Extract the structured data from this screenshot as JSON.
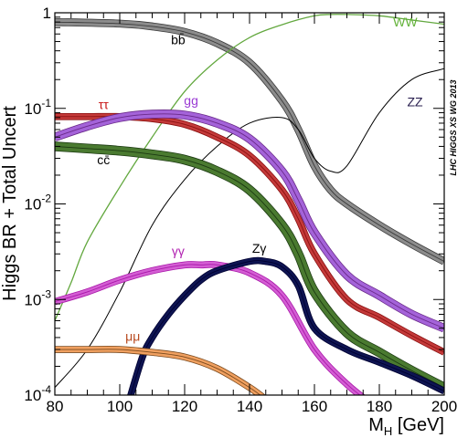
{
  "chart_data": {
    "type": "line",
    "title": "",
    "xlabel_main": "M",
    "xlabel_sub": "H",
    "xlabel_unit": " [GeV]",
    "ylabel": "Higgs BR + Total Uncert",
    "xlim": [
      80,
      200
    ],
    "ylim": [
      0.0001,
      1
    ],
    "yscale": "log",
    "x_ticks": [
      80,
      100,
      120,
      140,
      160,
      180,
      200
    ],
    "x_tick_labels": [
      "80",
      "100",
      "120",
      "140",
      "160",
      "180",
      "200"
    ],
    "y_ticks": [
      1,
      0.1,
      0.01,
      0.001,
      0.0001
    ],
    "y_tick_labels": [
      {
        "base": "1",
        "exp": ""
      },
      {
        "base": "10",
        "exp": "-1"
      },
      {
        "base": "10",
        "exp": "-2"
      },
      {
        "base": "10",
        "exp": "-3"
      },
      {
        "base": "10",
        "exp": "-4"
      }
    ],
    "grid": false,
    "watermark": "LHC HIGGS XS WG 2013",
    "series": [
      {
        "name": "bb̄",
        "color": "#3a3a3a",
        "band": "#8c8c8c",
        "band_width": 7,
        "x": [
          80,
          100,
          110,
          120,
          130,
          140,
          150,
          155,
          160,
          165,
          170,
          180,
          190,
          200
        ],
        "values": [
          0.8,
          0.77,
          0.72,
          0.63,
          0.48,
          0.3,
          0.12,
          0.06,
          0.025,
          0.014,
          0.01,
          0.006,
          0.0038,
          0.0025
        ]
      },
      {
        "name": "WW",
        "color": "#63a83f",
        "band": "#9ad07a",
        "band_width": 1.3,
        "x": [
          80,
          85,
          90,
          100,
          110,
          120,
          130,
          140,
          150,
          160,
          165,
          170,
          180,
          190,
          200
        ],
        "values": [
          0.0006,
          0.0015,
          0.004,
          0.015,
          0.05,
          0.15,
          0.32,
          0.55,
          0.75,
          0.93,
          0.96,
          0.96,
          0.93,
          0.84,
          0.76
        ]
      },
      {
        "name": "ZZ",
        "color": "#000000",
        "band": "#b8b8b8",
        "band_width": 1,
        "x": [
          80,
          90,
          100,
          110,
          120,
          130,
          140,
          150,
          155,
          160,
          165,
          170,
          180,
          190,
          200
        ],
        "values": [
          0.00012,
          0.0003,
          0.0012,
          0.006,
          0.018,
          0.04,
          0.07,
          0.08,
          0.06,
          0.03,
          0.022,
          0.025,
          0.09,
          0.2,
          0.26
        ]
      },
      {
        "name": "ττ",
        "color": "#8b1010",
        "band": "#c43a3a",
        "band_width": 6,
        "x": [
          80,
          90,
          100,
          110,
          120,
          130,
          140,
          150,
          155,
          160,
          170,
          180,
          190,
          200
        ],
        "values": [
          0.082,
          0.082,
          0.082,
          0.078,
          0.068,
          0.05,
          0.032,
          0.014,
          0.007,
          0.003,
          0.001,
          0.00065,
          0.00042,
          0.00028
        ]
      },
      {
        "name": "gg",
        "color": "#6a2a8a",
        "band": "#a463d9",
        "band_width": 8,
        "x": [
          80,
          90,
          100,
          110,
          120,
          130,
          140,
          150,
          155,
          160,
          170,
          180,
          190,
          200
        ],
        "values": [
          0.05,
          0.065,
          0.08,
          0.087,
          0.085,
          0.07,
          0.048,
          0.022,
          0.011,
          0.005,
          0.0018,
          0.0011,
          0.0007,
          0.0005
        ]
      },
      {
        "name": "cc̄",
        "color": "#1c3a12",
        "band": "#4a7a30",
        "band_width": 9,
        "x": [
          80,
          90,
          100,
          110,
          120,
          130,
          140,
          150,
          155,
          160,
          170,
          180,
          190,
          200
        ],
        "values": [
          0.04,
          0.038,
          0.036,
          0.033,
          0.029,
          0.022,
          0.014,
          0.006,
          0.003,
          0.0012,
          0.00045,
          0.00028,
          0.00018,
          0.00012
        ]
      },
      {
        "name": "γγ",
        "color": "#a818a8",
        "band": "#d45ed4",
        "band_width": 6,
        "x": [
          80,
          90,
          100,
          110,
          120,
          125,
          130,
          140,
          150,
          160,
          170,
          180
        ],
        "values": [
          0.00095,
          0.0012,
          0.0016,
          0.002,
          0.0023,
          0.0023,
          0.0023,
          0.0019,
          0.0011,
          0.0003,
          0.00013,
          7e-05
        ]
      },
      {
        "name": "Zγ",
        "color": "#000030",
        "band": "#0e1452",
        "band_width": 6,
        "x": [
          103,
          107,
          110,
          115,
          120,
          125,
          130,
          140,
          145,
          150,
          155,
          160,
          170,
          180,
          190,
          200
        ],
        "values": [
          9e-05,
          0.00025,
          0.0004,
          0.0007,
          0.0011,
          0.0016,
          0.002,
          0.0025,
          0.0025,
          0.0022,
          0.0014,
          0.0005,
          0.0003,
          0.00022,
          0.00016,
          0.00011
        ]
      },
      {
        "name": "μμ",
        "color": "#7a4a1e",
        "band": "#f0a060",
        "band_width": 6,
        "x": [
          80,
          90,
          100,
          110,
          120,
          130,
          140,
          145
        ],
        "values": [
          0.0003,
          0.0003,
          0.0003,
          0.00028,
          0.00025,
          0.00019,
          0.00012,
          9e-05
        ]
      }
    ],
    "labels": [
      {
        "text": "bb̄",
        "x": 118,
        "y": 0.47,
        "color": "#000000"
      },
      {
        "text": "WW",
        "x": 188,
        "y": 0.72,
        "color": "#63b23a"
      },
      {
        "text": "ZZ",
        "x": 191,
        "y": 0.105,
        "color": "#2a2050"
      },
      {
        "text": "ττ",
        "x": 95,
        "y": 0.098,
        "color": "#c81818"
      },
      {
        "text": "gg",
        "x": 122,
        "y": 0.108,
        "color": "#9a3ad4"
      },
      {
        "text": "cc̄",
        "x": 95,
        "y": 0.026,
        "color": "#000000"
      },
      {
        "text": "γγ",
        "x": 118,
        "y": 0.0029,
        "color": "#b020b0"
      },
      {
        "text": "Zγ",
        "x": 143,
        "y": 0.0031,
        "color": "#000000"
      },
      {
        "text": "μμ",
        "x": 104,
        "y": 0.00037,
        "color": "#b84a20"
      }
    ]
  }
}
